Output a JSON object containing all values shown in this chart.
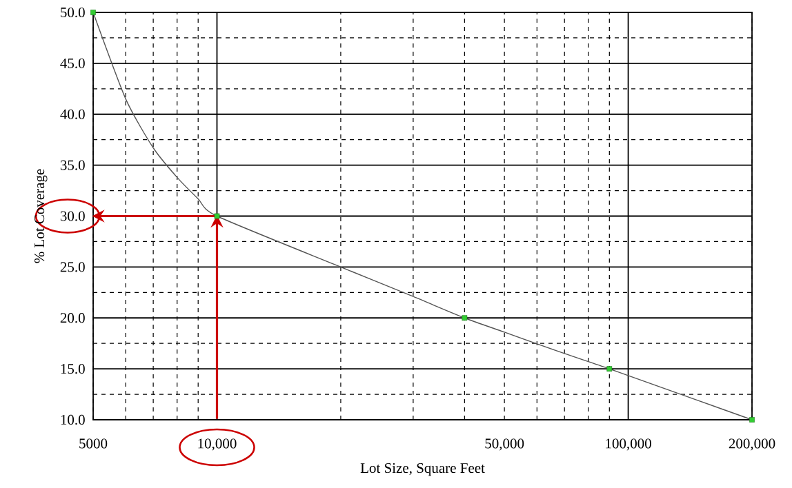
{
  "chart_data": {
    "type": "line",
    "xlabel": "Lot Size, Square Feet",
    "ylabel": "% Lot Coverage",
    "log": "x",
    "grid": true,
    "xlim": [
      5000,
      200000
    ],
    "ylim": [
      10,
      50
    ],
    "xticks": [
      {
        "value": 5000,
        "label": "5000"
      },
      {
        "value": 6000,
        "label": null
      },
      {
        "value": 7000,
        "label": null
      },
      {
        "value": 8000,
        "label": null
      },
      {
        "value": 9000,
        "label": null
      },
      {
        "value": 10000,
        "label": "10,000"
      },
      {
        "value": 20000,
        "label": null
      },
      {
        "value": 30000,
        "label": null
      },
      {
        "value": 40000,
        "label": null
      },
      {
        "value": 50000,
        "label": "50,000"
      },
      {
        "value": 60000,
        "label": null
      },
      {
        "value": 70000,
        "label": null
      },
      {
        "value": 80000,
        "label": null
      },
      {
        "value": 90000,
        "label": null
      },
      {
        "value": 100000,
        "label": "100,000"
      },
      {
        "value": 200000,
        "label": "200,000"
      }
    ],
    "yticks": [
      {
        "value": 10,
        "label": "10.0"
      },
      {
        "value": 12.5,
        "label": null
      },
      {
        "value": 15,
        "label": "15.0"
      },
      {
        "value": 17.5,
        "label": null
      },
      {
        "value": 20,
        "label": "20.0"
      },
      {
        "value": 22.5,
        "label": null
      },
      {
        "value": 25,
        "label": "25.0"
      },
      {
        "value": 27.5,
        "label": null
      },
      {
        "value": 30,
        "label": "30.0"
      },
      {
        "value": 32.5,
        "label": null
      },
      {
        "value": 35,
        "label": "35.0"
      },
      {
        "value": 37.5,
        "label": null
      },
      {
        "value": 40,
        "label": "40.0"
      },
      {
        "value": 42.5,
        "label": null
      },
      {
        "value": 45,
        "label": "45.0"
      },
      {
        "value": 47.5,
        "label": null
      },
      {
        "value": 50,
        "label": "50.0"
      }
    ],
    "series": [
      {
        "marker": "none",
        "color": "#555555",
        "x": [
          5000,
          6000,
          7000,
          8000,
          9000,
          10000,
          20000,
          30000,
          40000,
          50000,
          70000,
          90000,
          150000,
          200000
        ],
        "values": [
          50,
          41.5,
          36.7,
          33.8,
          31.7,
          30,
          25,
          22.1,
          20,
          18.6,
          16.5,
          15,
          11.8,
          10
        ]
      },
      {
        "type": "scatter",
        "marker": "square",
        "color": "#33cc33",
        "x": [
          5000,
          10000,
          40000,
          90000,
          200000
        ],
        "values": [
          50,
          30,
          20,
          15,
          10
        ]
      }
    ]
  }
}
